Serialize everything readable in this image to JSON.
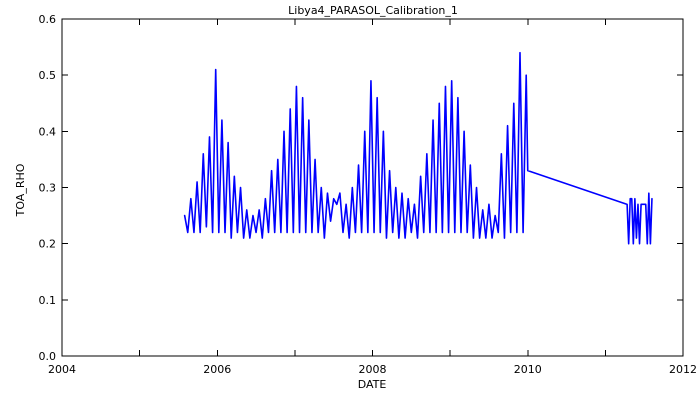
{
  "chart_data": {
    "type": "line",
    "title": "Libya4_PARASOL_Calibration_1",
    "xlabel": "DATE",
    "ylabel": "TOA_RHO",
    "xlim": [
      2004,
      2012
    ],
    "ylim": [
      0.0,
      0.6
    ],
    "xticks": [
      2004,
      2005,
      2006,
      2007,
      2008,
      2009,
      2010,
      2011,
      2012
    ],
    "xtick_labels": [
      "2004",
      "",
      "2006",
      "",
      "2008",
      "",
      "2010",
      "",
      "2012"
    ],
    "yticks": [
      0.0,
      0.1,
      0.2,
      0.3,
      0.4,
      0.5,
      0.6
    ],
    "ytick_labels": [
      "0.0",
      "0.1",
      "0.2",
      "0.3",
      "0.4",
      "0.5",
      "0.6"
    ],
    "grid": false,
    "legend": "none",
    "series_color": "#0000ff",
    "series": [
      {
        "name": "",
        "x": [
          2005.58,
          2005.62,
          2005.66,
          2005.7,
          2005.74,
          2005.78,
          2005.82,
          2005.86,
          2005.9,
          2005.94,
          2005.98,
          2006.02,
          2006.06,
          2006.1,
          2006.14,
          2006.18,
          2006.22,
          2006.26,
          2006.3,
          2006.34,
          2006.38,
          2006.42,
          2006.46,
          2006.5,
          2006.54,
          2006.58,
          2006.62,
          2006.66,
          2006.7,
          2006.74,
          2006.78,
          2006.82,
          2006.86,
          2006.9,
          2006.94,
          2006.98,
          2007.02,
          2007.06,
          2007.1,
          2007.14,
          2007.18,
          2007.22,
          2007.26,
          2007.3,
          2007.34,
          2007.38,
          2007.42,
          2007.46,
          2007.5,
          2007.54,
          2007.58,
          2007.62,
          2007.66,
          2007.7,
          2007.74,
          2007.78,
          2007.82,
          2007.86,
          2007.9,
          2007.94,
          2007.98,
          2008.02,
          2008.06,
          2008.1,
          2008.14,
          2008.18,
          2008.22,
          2008.26,
          2008.3,
          2008.34,
          2008.38,
          2008.42,
          2008.46,
          2008.5,
          2008.54,
          2008.58,
          2008.62,
          2008.66,
          2008.7,
          2008.74,
          2008.78,
          2008.82,
          2008.86,
          2008.9,
          2008.94,
          2008.98,
          2009.02,
          2009.06,
          2009.1,
          2009.14,
          2009.18,
          2009.22,
          2009.26,
          2009.3,
          2009.34,
          2009.38,
          2009.42,
          2009.46,
          2009.5,
          2009.54,
          2009.58,
          2009.62,
          2009.66,
          2009.7,
          2009.74,
          2009.78,
          2009.82,
          2009.86,
          2009.9,
          2009.94,
          2009.98,
          2010.0,
          2011.28,
          2011.3,
          2011.32,
          2011.34,
          2011.36,
          2011.38,
          2011.4,
          2011.42,
          2011.44,
          2011.46,
          2011.48,
          2011.5,
          2011.52,
          2011.54,
          2011.56,
          2011.58,
          2011.6
        ],
        "y": [
          0.25,
          0.22,
          0.28,
          0.22,
          0.31,
          0.22,
          0.36,
          0.23,
          0.39,
          0.22,
          0.51,
          0.22,
          0.42,
          0.22,
          0.38,
          0.21,
          0.32,
          0.22,
          0.3,
          0.21,
          0.26,
          0.21,
          0.25,
          0.22,
          0.26,
          0.21,
          0.28,
          0.22,
          0.33,
          0.22,
          0.35,
          0.22,
          0.4,
          0.22,
          0.44,
          0.22,
          0.48,
          0.22,
          0.46,
          0.22,
          0.42,
          0.22,
          0.35,
          0.22,
          0.3,
          0.21,
          0.29,
          0.24,
          0.28,
          0.27,
          0.29,
          0.22,
          0.27,
          0.21,
          0.3,
          0.22,
          0.34,
          0.22,
          0.4,
          0.22,
          0.49,
          0.22,
          0.46,
          0.22,
          0.4,
          0.21,
          0.33,
          0.22,
          0.3,
          0.21,
          0.29,
          0.21,
          0.28,
          0.22,
          0.27,
          0.21,
          0.32,
          0.22,
          0.36,
          0.22,
          0.42,
          0.22,
          0.45,
          0.22,
          0.48,
          0.22,
          0.49,
          0.22,
          0.46,
          0.22,
          0.4,
          0.22,
          0.34,
          0.21,
          0.3,
          0.21,
          0.26,
          0.21,
          0.27,
          0.21,
          0.25,
          0.22,
          0.36,
          0.21,
          0.41,
          0.22,
          0.45,
          0.22,
          0.54,
          0.22,
          0.5,
          0.33,
          0.27,
          0.2,
          0.28,
          0.28,
          0.2,
          0.28,
          0.21,
          0.27,
          0.2,
          0.27,
          0.27,
          0.27,
          0.27,
          0.2,
          0.29,
          0.2,
          0.28
        ]
      }
    ]
  }
}
